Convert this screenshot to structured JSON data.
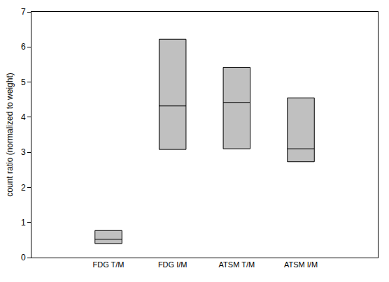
{
  "chart_data": {
    "type": "box",
    "y_label": "count ratio (normalized to weight)",
    "categories": [
      "FDG T/M",
      "FDG I/M",
      "ATSM T/M",
      "ATSM I/M"
    ],
    "lower": [
      0.4,
      3.08,
      3.1,
      2.73
    ],
    "median": [
      0.52,
      4.32,
      4.42,
      3.1
    ],
    "upper": [
      0.77,
      6.22,
      5.42,
      4.55
    ],
    "color": "#c0c0c0",
    "ylim": [
      0,
      7
    ],
    "yticks": [
      0,
      1,
      2,
      3,
      4,
      5,
      6,
      7
    ],
    "grid": false
  }
}
